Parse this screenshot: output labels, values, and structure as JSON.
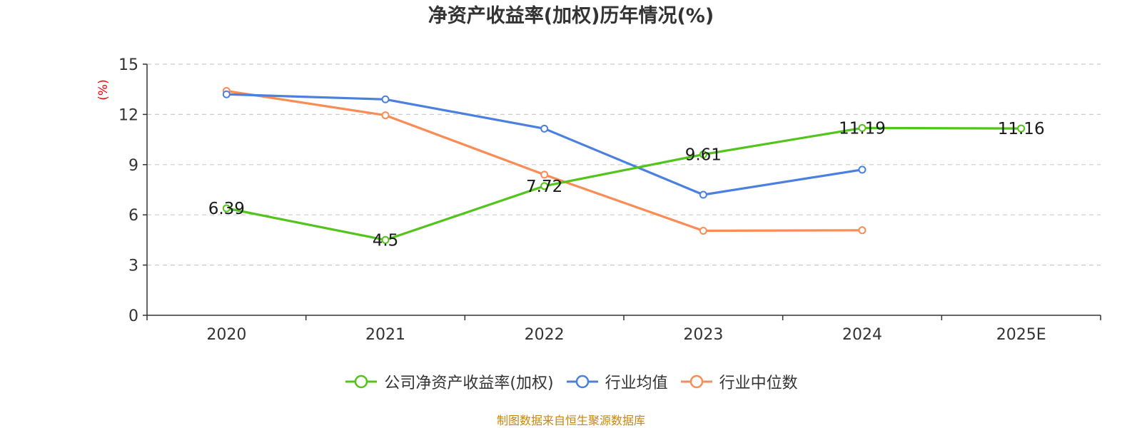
{
  "chart_data": {
    "type": "line",
    "title": "净资产收益率(加权)历年情况(%)",
    "ylabel": "(%)",
    "xlabel": "",
    "categories": [
      "2020",
      "2021",
      "2022",
      "2023",
      "2024",
      "2025E"
    ],
    "ylim": [
      0,
      15
    ],
    "yticks": [
      0,
      3,
      6,
      9,
      12,
      15
    ],
    "grid": true,
    "legend_position": "bottom",
    "series": [
      {
        "name": "公司净资产收益率(加权)",
        "color": "#52c41a",
        "values": [
          6.39,
          4.5,
          7.72,
          9.61,
          11.19,
          11.16
        ],
        "labels": [
          "6.39",
          "4.5",
          "7.72",
          "9.61",
          "11.19",
          "11.16"
        ],
        "show_labels": true
      },
      {
        "name": "行业均值",
        "color": "#4b7fe0",
        "values": [
          13.2,
          12.9,
          11.15,
          7.2,
          8.7,
          null
        ],
        "show_labels": false
      },
      {
        "name": "行业中位数",
        "color": "#fa8c55",
        "values": [
          13.4,
          11.95,
          8.4,
          5.05,
          5.08,
          null
        ],
        "show_labels": false
      }
    ]
  },
  "footer": "制图数据来自恒生聚源数据库",
  "colors": {
    "axis": "#333333",
    "grid": "#cccccc",
    "ylabel": "#ff0000",
    "footer": "#c8860d"
  }
}
